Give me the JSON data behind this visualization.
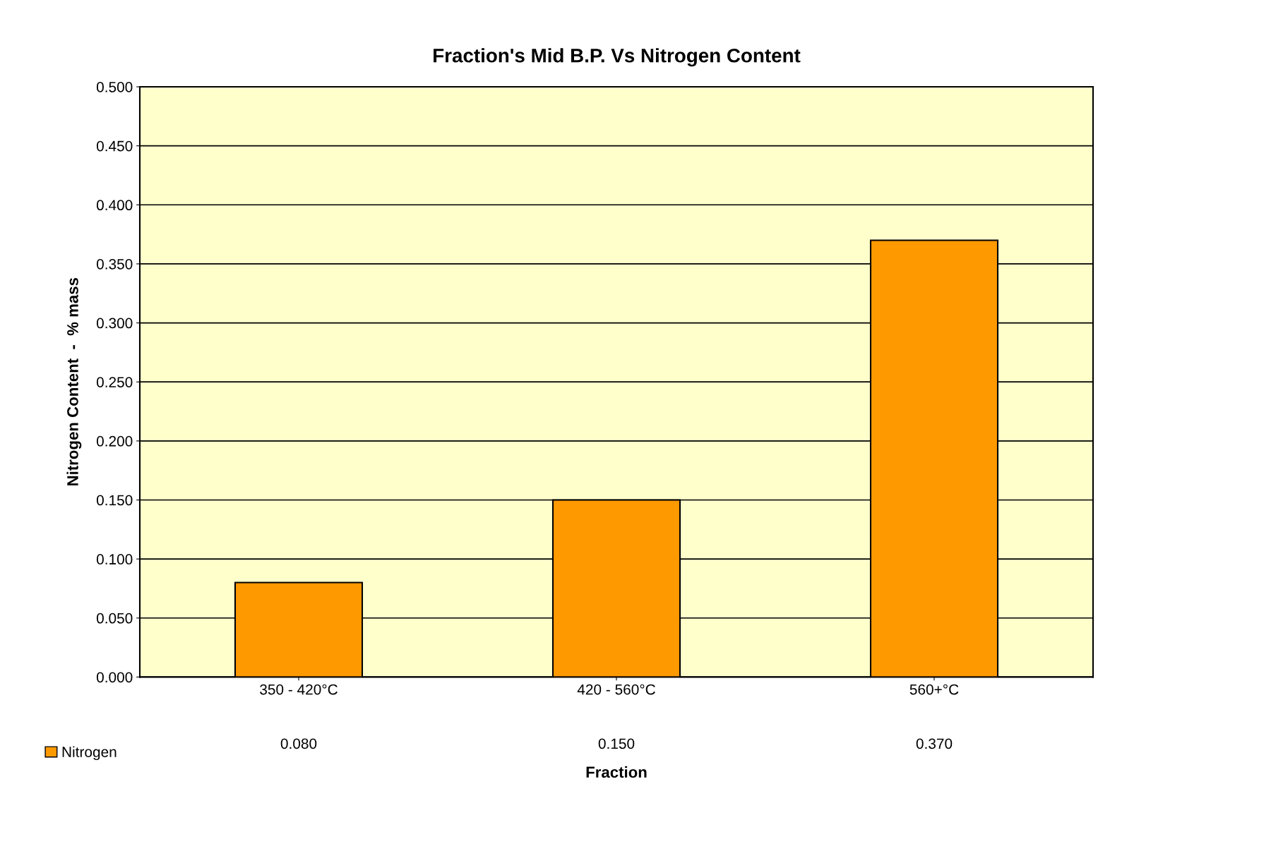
{
  "chart_data": {
    "type": "bar",
    "title": "Fraction's Mid B.P. Vs Nitrogen Content",
    "xlabel": "Fraction",
    "ylabel": "Nitrogen Content  -  % mass",
    "categories": [
      "350 - 420°C",
      "420 - 560°C",
      "560+°C"
    ],
    "series": [
      {
        "name": "Nitrogen",
        "color": "#ff9900",
        "values": [
          0.08,
          0.15,
          0.37
        ],
        "value_labels": [
          "0.080",
          "0.150",
          "0.370"
        ]
      }
    ],
    "ylim": [
      0,
      0.5
    ],
    "yticks": [
      {
        "value": 0,
        "label": "0.000"
      },
      {
        "value": 0.05,
        "label": "0.050"
      },
      {
        "value": 0.1,
        "label": "0.100"
      },
      {
        "value": 0.15,
        "label": "0.150"
      },
      {
        "value": 0.2,
        "label": "0.200"
      },
      {
        "value": 0.25,
        "label": "0.250"
      },
      {
        "value": 0.3,
        "label": "0.300"
      },
      {
        "value": 0.35,
        "label": "0.350"
      },
      {
        "value": 0.4,
        "label": "0.400"
      },
      {
        "value": 0.45,
        "label": "0.450"
      },
      {
        "value": 0.5,
        "label": "0.500"
      }
    ],
    "grid": "y",
    "legend": "bottom left"
  }
}
